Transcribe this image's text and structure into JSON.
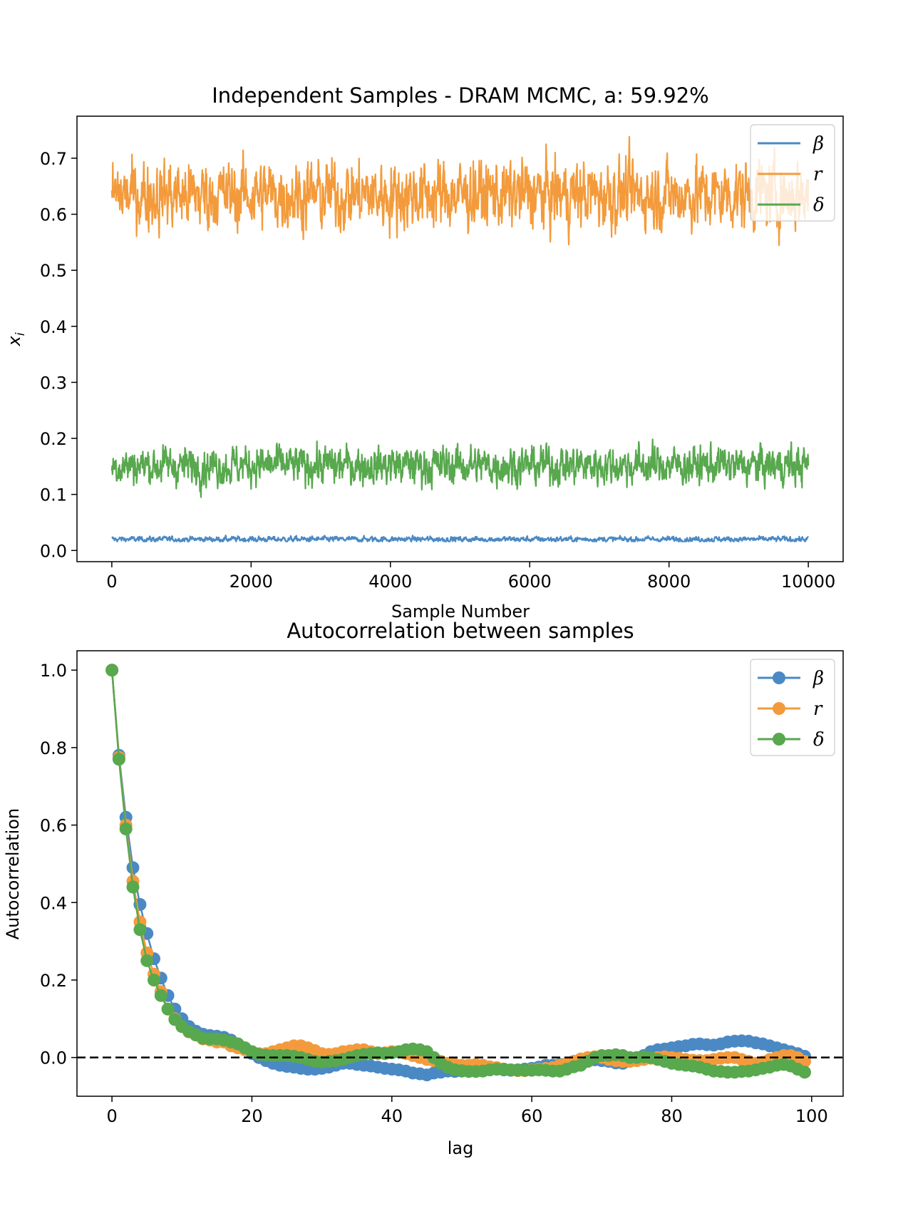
{
  "chart_data": [
    {
      "type": "line",
      "title": "Independent Samples - DRAM MCMC, a:  59.92%",
      "xlabel": "Sample Number",
      "ylabel": "x_i",
      "ylabel_main": "x",
      "ylabel_sub": "i",
      "xlim": [
        -500,
        10500
      ],
      "ylim": [
        -0.02,
        0.775
      ],
      "xticks": [
        0,
        2000,
        4000,
        6000,
        8000,
        10000
      ],
      "xtick_labels": [
        "0",
        "2000",
        "4000",
        "6000",
        "8000",
        "10000"
      ],
      "yticks": [
        0.0,
        0.1,
        0.2,
        0.3,
        0.4,
        0.5,
        0.6,
        0.7
      ],
      "ytick_labels": [
        "0.0",
        "0.1",
        "0.2",
        "0.3",
        "0.4",
        "0.5",
        "0.6",
        "0.7"
      ],
      "legend": "top-right",
      "n_samples": 10000,
      "series": [
        {
          "name": "β",
          "color": "#4a89c4",
          "mean": 0.02,
          "spread": 0.0025,
          "min": 0.016,
          "max": 0.027
        },
        {
          "name": "r",
          "color": "#f39b3c",
          "mean": 0.635,
          "spread": 0.03,
          "min": 0.53,
          "max": 0.745
        },
        {
          "name": "δ",
          "color": "#58a84e",
          "mean": 0.152,
          "spread": 0.017,
          "min": 0.095,
          "max": 0.222
        }
      ]
    },
    {
      "type": "line",
      "title": "Autocorrelation between samples",
      "xlabel": "lag",
      "ylabel": "Autocorrelation",
      "xlim": [
        -5,
        104.5
      ],
      "ylim": [
        -0.1,
        1.05
      ],
      "xticks": [
        0,
        20,
        40,
        60,
        80,
        100
      ],
      "xtick_labels": [
        "0",
        "20",
        "40",
        "60",
        "80",
        "100"
      ],
      "yticks": [
        0.0,
        0.2,
        0.4,
        0.6,
        0.8,
        1.0
      ],
      "ytick_labels": [
        "0.0",
        "0.2",
        "0.4",
        "0.6",
        "0.8",
        "1.0"
      ],
      "legend": "top-right",
      "reference_line": {
        "y": 0.0,
        "style": "dashed",
        "color": "#000000"
      },
      "x": [
        0,
        1,
        2,
        3,
        4,
        5,
        6,
        7,
        8,
        9,
        10,
        11,
        12,
        13,
        14,
        15,
        16,
        17,
        18,
        19,
        20,
        21,
        22,
        23,
        24,
        25,
        26,
        27,
        28,
        29,
        30,
        31,
        32,
        33,
        34,
        35,
        36,
        37,
        38,
        39,
        40,
        41,
        42,
        43,
        44,
        45,
        46,
        47,
        48,
        49,
        50,
        51,
        52,
        53,
        54,
        55,
        56,
        57,
        58,
        59,
        60,
        61,
        62,
        63,
        64,
        65,
        66,
        67,
        68,
        69,
        70,
        71,
        72,
        73,
        74,
        75,
        76,
        77,
        78,
        79,
        80,
        81,
        82,
        83,
        84,
        85,
        86,
        87,
        88,
        89,
        90,
        91,
        92,
        93,
        94,
        95,
        96,
        97,
        98,
        99
      ],
      "series": [
        {
          "name": "β",
          "color": "#4a89c4",
          "values": [
            1.0,
            0.78,
            0.62,
            0.49,
            0.395,
            0.32,
            0.255,
            0.205,
            0.16,
            0.125,
            0.1,
            0.08,
            0.068,
            0.06,
            0.057,
            0.055,
            0.052,
            0.045,
            0.035,
            0.025,
            0.01,
            0.0,
            -0.008,
            -0.015,
            -0.02,
            -0.023,
            -0.025,
            -0.028,
            -0.03,
            -0.03,
            -0.028,
            -0.025,
            -0.02,
            -0.015,
            -0.015,
            -0.018,
            -0.02,
            -0.022,
            -0.025,
            -0.028,
            -0.03,
            -0.032,
            -0.035,
            -0.04,
            -0.042,
            -0.045,
            -0.04,
            -0.038,
            -0.035,
            -0.036,
            -0.035,
            -0.034,
            -0.035,
            -0.03,
            -0.028,
            -0.03,
            -0.032,
            -0.033,
            -0.032,
            -0.03,
            -0.028,
            -0.025,
            -0.02,
            -0.02,
            -0.018,
            -0.015,
            -0.01,
            -0.005,
            -0.005,
            -0.006,
            -0.008,
            -0.01,
            -0.014,
            -0.015,
            -0.01,
            -0.003,
            0.005,
            0.015,
            0.02,
            0.022,
            0.025,
            0.028,
            0.03,
            0.034,
            0.035,
            0.033,
            0.032,
            0.035,
            0.04,
            0.042,
            0.043,
            0.042,
            0.038,
            0.035,
            0.03,
            0.025,
            0.02,
            0.015,
            0.01,
            0.003
          ]
        },
        {
          "name": "r",
          "color": "#f39b3c",
          "values": [
            1.0,
            0.775,
            0.6,
            0.455,
            0.35,
            0.27,
            0.215,
            0.17,
            0.125,
            0.1,
            0.08,
            0.066,
            0.058,
            0.048,
            0.045,
            0.04,
            0.04,
            0.03,
            0.025,
            0.02,
            0.015,
            0.01,
            0.01,
            0.015,
            0.02,
            0.025,
            0.03,
            0.03,
            0.025,
            0.018,
            0.01,
            0.008,
            0.01,
            0.015,
            0.017,
            0.02,
            0.02,
            0.015,
            0.01,
            0.012,
            0.015,
            0.015,
            0.01,
            0.005,
            0.0,
            -0.005,
            -0.008,
            -0.01,
            -0.015,
            -0.018,
            -0.02,
            -0.02,
            -0.018,
            -0.02,
            -0.024,
            -0.026,
            -0.03,
            -0.032,
            -0.034,
            -0.034,
            -0.032,
            -0.03,
            -0.028,
            -0.026,
            -0.02,
            -0.015,
            -0.01,
            -0.004,
            0.0,
            0.002,
            0.0,
            -0.005,
            -0.008,
            -0.01,
            -0.01,
            -0.008,
            -0.005,
            -0.002,
            0.0,
            0.002,
            0.0,
            -0.002,
            -0.005,
            -0.007,
            -0.008,
            -0.008,
            -0.005,
            -0.002,
            0.0,
            0.0,
            -0.005,
            -0.01,
            -0.015,
            -0.012,
            -0.005,
            0.0,
            0.005,
            0.005,
            0.0,
            -0.01
          ]
        },
        {
          "name": "δ",
          "color": "#58a84e",
          "values": [
            1.0,
            0.77,
            0.59,
            0.44,
            0.33,
            0.25,
            0.2,
            0.16,
            0.125,
            0.098,
            0.08,
            0.067,
            0.058,
            0.05,
            0.048,
            0.048,
            0.045,
            0.04,
            0.035,
            0.025,
            0.015,
            0.008,
            0.006,
            0.005,
            0.005,
            0.005,
            0.003,
            0.0,
            -0.005,
            -0.01,
            -0.012,
            -0.01,
            -0.008,
            -0.005,
            0.0,
            0.005,
            0.008,
            0.01,
            0.012,
            0.01,
            0.012,
            0.015,
            0.02,
            0.022,
            0.02,
            0.015,
            0.0,
            -0.015,
            -0.025,
            -0.032,
            -0.034,
            -0.036,
            -0.036,
            -0.035,
            -0.032,
            -0.03,
            -0.03,
            -0.032,
            -0.033,
            -0.033,
            -0.033,
            -0.032,
            -0.033,
            -0.035,
            -0.035,
            -0.03,
            -0.024,
            -0.02,
            -0.01,
            0.0,
            0.005,
            0.005,
            0.007,
            0.005,
            0.0,
            0.0,
            0.002,
            0.0,
            -0.005,
            -0.01,
            -0.015,
            -0.018,
            -0.02,
            -0.022,
            -0.025,
            -0.03,
            -0.035,
            -0.036,
            -0.038,
            -0.038,
            -0.036,
            -0.035,
            -0.032,
            -0.028,
            -0.025,
            -0.02,
            -0.018,
            -0.022,
            -0.03,
            -0.038
          ]
        }
      ]
    }
  ]
}
